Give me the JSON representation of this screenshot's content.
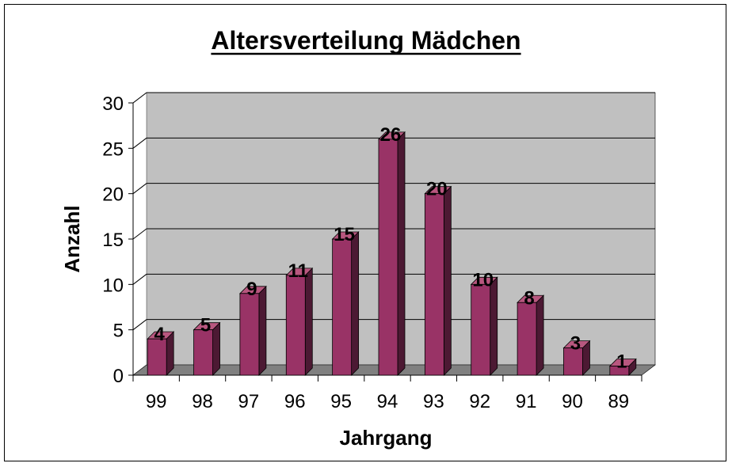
{
  "chart_data": {
    "type": "bar",
    "title": "Altersverteilung Mädchen",
    "xlabel": "Jahrgang",
    "ylabel": "Anzahl",
    "categories": [
      "99",
      "98",
      "97",
      "96",
      "95",
      "94",
      "93",
      "92",
      "91",
      "90",
      "89"
    ],
    "values": [
      4,
      5,
      9,
      11,
      15,
      26,
      20,
      10,
      8,
      3,
      1
    ],
    "ylim": [
      0,
      30
    ],
    "yticks": [
      "0",
      "5",
      "10",
      "15",
      "20",
      "25",
      "30"
    ],
    "grid": true,
    "legend": "none",
    "style": "3d-column",
    "colors": {
      "bar_front": "#993366",
      "bar_side": "#4c1933",
      "bar_top": "#b8577f",
      "wall": "#c0c0c0",
      "floor": "#808080",
      "side_wall": "#ffffff",
      "grid": "#000000"
    }
  }
}
